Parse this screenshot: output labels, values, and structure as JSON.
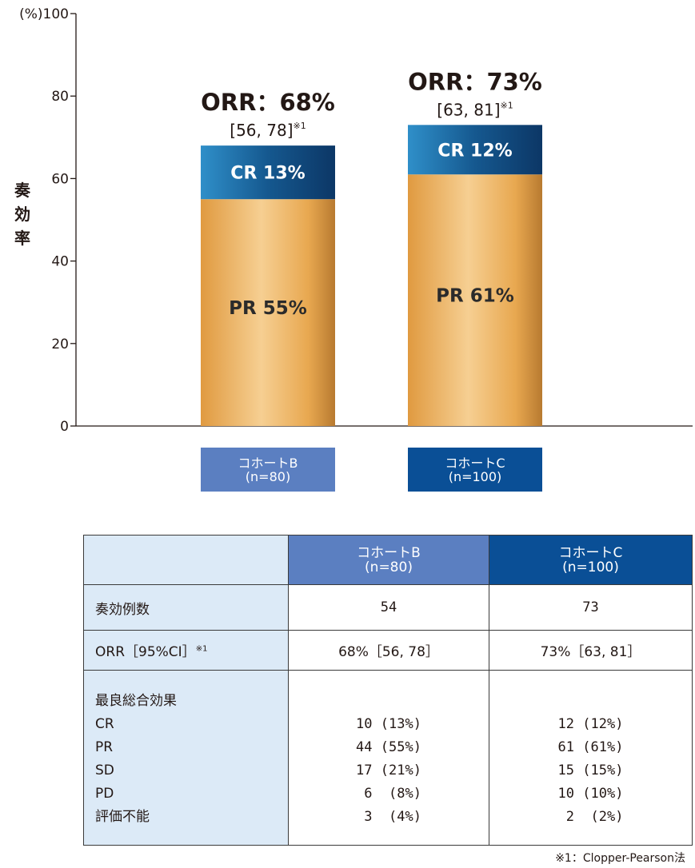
{
  "chart_data": {
    "type": "bar",
    "stacked": true,
    "ylabel_unit": "(%)",
    "ylabel": "奏効率",
    "ylim": [
      0,
      100
    ],
    "yticks": [
      0,
      20,
      40,
      60,
      80,
      100
    ],
    "grid": false,
    "categories": [
      "コホートB\n(n=80)",
      "コホートC\n(n=100)"
    ],
    "category_lines": [
      [
        "コホートB",
        "(n=80)"
      ],
      [
        "コホートC",
        "(n=100)"
      ]
    ],
    "category_colors": [
      "#5b7fc1",
      "#0a4f96"
    ],
    "series": [
      {
        "name": "PR",
        "values": [
          55,
          61
        ],
        "color": "#e6a54e",
        "labels": [
          "PR 55%",
          "PR 61%"
        ]
      },
      {
        "name": "CR",
        "values": [
          13,
          12
        ],
        "color": "#1b6aa8",
        "labels": [
          "CR 13%",
          "CR 12%"
        ]
      }
    ],
    "annotations": [
      {
        "orr": "ORR：68%",
        "ci": "[56, 78]",
        "note": "※1"
      },
      {
        "orr": "ORR：73%",
        "ci": "[63, 81]",
        "note": "※1"
      }
    ]
  },
  "table": {
    "headers": {
      "b_line1": "コホートB",
      "b_line2": "(n=80)",
      "c_line1": "コホートC",
      "c_line2": "(n=100)"
    },
    "row_response": {
      "label": "奏効例数",
      "b": "54",
      "c": "73"
    },
    "row_orr": {
      "label": "ORR［95%CI］",
      "note": "※1",
      "b": "68%［56, 78］",
      "c": "73%［63, 81］"
    },
    "best_overall": {
      "title": "最良総合効果",
      "labels": [
        "CR",
        "PR",
        "SD",
        "PD",
        "評価不能"
      ],
      "b": [
        "10 (13%)",
        "44 (55%)",
        "17 (21%)",
        " 6  (8%)",
        " 3  (4%)"
      ],
      "c": [
        "12 (12%)",
        "61 (61%)",
        "15 (15%)",
        "10 (10%)",
        " 2  (2%)"
      ]
    }
  },
  "footnote": "※1：Clopper-Pearson法"
}
